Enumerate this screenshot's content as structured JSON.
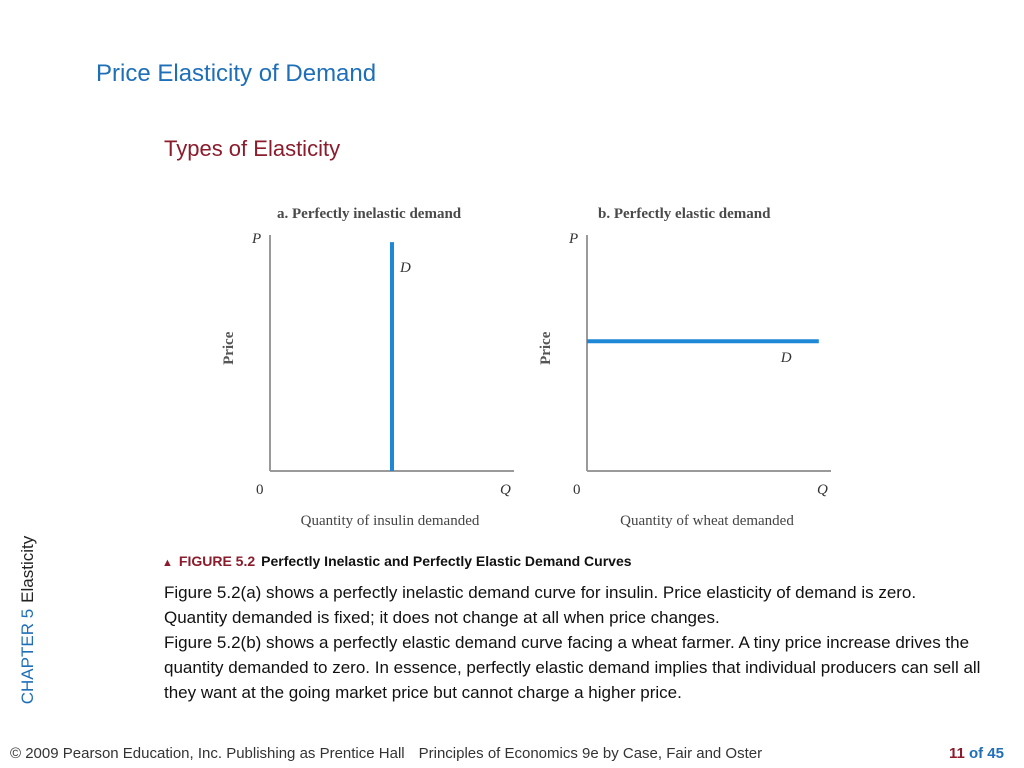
{
  "slide": {
    "title": "Price Elasticity of Demand",
    "subtitle": "Types of Elasticity",
    "side_chapter": "CHAPTER 5",
    "side_topic": "Elasticity",
    "figure_number": "FIGURE 5.2",
    "figure_title": "Perfectly Inelastic and Perfectly Elastic Demand Curves",
    "caption_a": "Figure 5.2(a) shows a perfectly inelastic demand curve for insulin. Price elasticity of demand is zero. Quantity demanded is fixed; it does not change at all when price changes.",
    "caption_b": "Figure 5.2(b) shows a perfectly elastic demand curve facing a wheat farmer. A tiny price increase drives the quantity demanded to zero. In essence, perfectly elastic demand implies that individual producers can sell all they want at the going market price but cannot charge a higher price.",
    "footer_left": "© 2009 Pearson Education, Inc. Publishing as Prentice Hall",
    "footer_book": "Principles of Economics 9e by Case, Fair and Oster",
    "page_current": "11",
    "page_of": "of 45"
  },
  "colors": {
    "curve": "#1e88d6",
    "axis": "#9a9a9a",
    "title_blue": "#1f6fb8",
    "accent_red": "#8b1c2c"
  },
  "chart_data": [
    {
      "type": "line",
      "title": "a. Perfectly inelastic demand",
      "xlabel": "Quantity of insulin demanded",
      "ylabel": "Price",
      "x_axis_symbol": "Q",
      "y_axis_symbol": "P",
      "origin_label": "0",
      "series": [
        {
          "name": "D",
          "x": [
            0.5,
            0.5
          ],
          "y": [
            0,
            0.97
          ]
        }
      ],
      "xlim": [
        0,
        1
      ],
      "ylim": [
        0,
        1
      ],
      "grid": false
    },
    {
      "type": "line",
      "title": "b. Perfectly elastic demand",
      "xlabel": "Quantity of wheat demanded",
      "ylabel": "Price",
      "x_axis_symbol": "Q",
      "y_axis_symbol": "P",
      "origin_label": "0",
      "series": [
        {
          "name": "D",
          "x": [
            0,
            0.95
          ],
          "y": [
            0.55,
            0.55
          ]
        }
      ],
      "xlim": [
        0,
        1
      ],
      "ylim": [
        0,
        1
      ],
      "grid": false
    }
  ]
}
